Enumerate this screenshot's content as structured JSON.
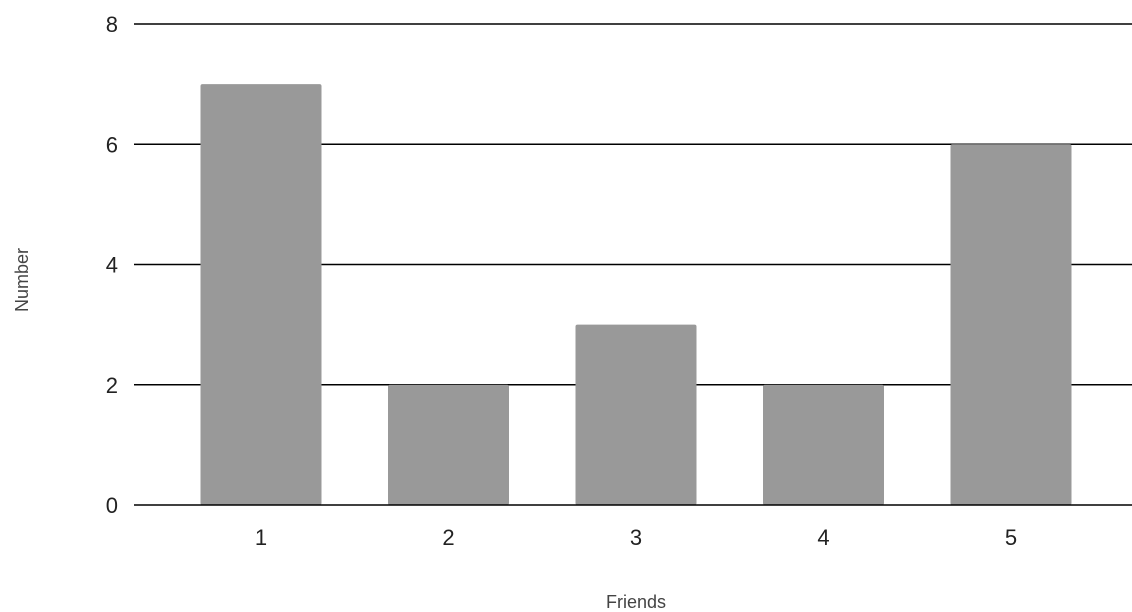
{
  "chart_data": {
    "type": "bar",
    "title": "",
    "xlabel": "Friends",
    "ylabel": "Number",
    "categories": [
      "1",
      "2",
      "3",
      "4",
      "5"
    ],
    "values": [
      7,
      2,
      3,
      2,
      6
    ],
    "ylim": [
      0,
      8
    ],
    "yticks": [
      "0",
      "2",
      "4",
      "6",
      "8"
    ],
    "grid": true,
    "bar_color": "#999999"
  }
}
